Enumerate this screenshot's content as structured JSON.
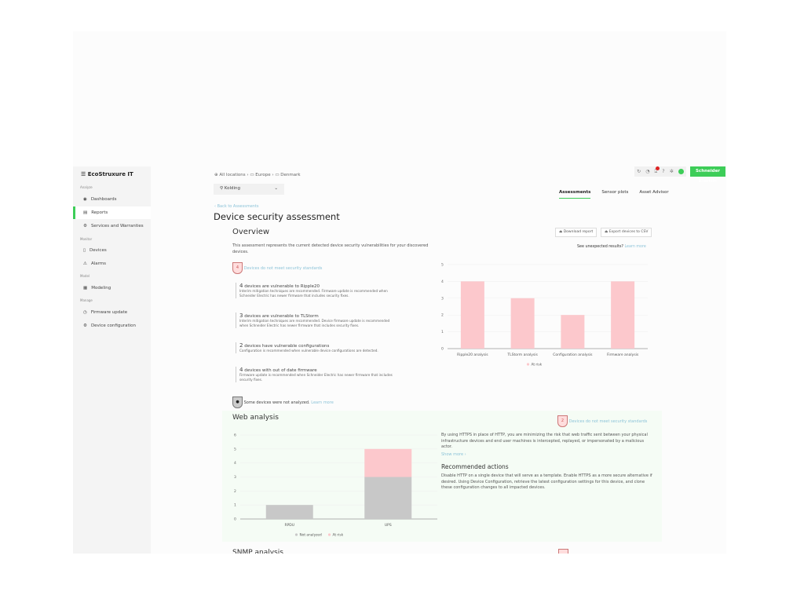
{
  "sidebar": {
    "logo": "EcoStruxure IT",
    "sections": [
      {
        "label": "Analyze",
        "items": [
          {
            "label": "Dashboards",
            "icon": "eye-icon"
          },
          {
            "label": "Reports",
            "icon": "report-icon",
            "active": true
          },
          {
            "label": "Services and Warranties",
            "icon": "services-icon"
          }
        ]
      },
      {
        "label": "Monitor",
        "items": [
          {
            "label": "Devices",
            "icon": "device-icon"
          },
          {
            "label": "Alarms",
            "icon": "alarm-icon"
          }
        ]
      },
      {
        "label": "Model",
        "items": [
          {
            "label": "Modeling",
            "icon": "modeling-icon"
          }
        ]
      },
      {
        "label": "Manage",
        "items": [
          {
            "label": "Firmware update",
            "icon": "firmware-icon"
          },
          {
            "label": "Device configuration",
            "icon": "config-icon"
          }
        ]
      }
    ]
  },
  "breadcrumb": [
    "All locations",
    "Europe",
    "Denmark"
  ],
  "location_select": "Kolding",
  "tabs": [
    "Assessments",
    "Sensor plots",
    "Asset Advisor"
  ],
  "brand": "Schneider Electric",
  "back_link": "Back to Assessments",
  "page_title": "Device security assessment",
  "overview": {
    "title": "Overview",
    "download": "Download report",
    "export": "Export devices to CSV",
    "unexpected": "See unexpected results?",
    "learn_more": "Learn more",
    "description": "This assessment represents the current detected device security vulnerabilities for your discovered devices.",
    "badge_count": "4",
    "badge_label": "Devices do not meet security standards",
    "vulns": [
      {
        "count": "4",
        "title": "devices are vulnerable to Ripple20",
        "desc": "Interim mitigation techniques are recommended. Firmware update is recommended when Schneider Electric has newer firmware that includes security fixes."
      },
      {
        "count": "3",
        "title": "devices are vulnerable to TLStorm",
        "desc": "Interim mitigation techniques are recommended. Device firmware update is recommended when Schneider Electric has newer firmware that includes security fixes."
      },
      {
        "count": "2",
        "title": "devices have vulnerable configurations",
        "desc": "Configuration is recommended when vulnerable device configurations are detected."
      },
      {
        "count": "4",
        "title": "devices with out of date firmware",
        "desc": "Firmware update is recommended when Schneider Electric has newer firmware that includes security fixes."
      }
    ],
    "not_analyzed": "Some devices were not analyzed.",
    "not_analyzed_link": "Learn more"
  },
  "web": {
    "title": "Web analysis",
    "badge_count": "2",
    "badge_label": "Devices do not meet security standards",
    "text": "By using HTTPS in place of HTTP, you are minimizing the risk that web traffic sent between your physical infrastructure devices and end user machines is intercepted, replayed, or impersonated by a malicious actor.",
    "show_more": "Show more",
    "actions_title": "Recommended actions",
    "actions": "Disable HTTP on a single device that will serve as a template. Enable HTTPS as a more secure alternative if desired. Using Device Configuration, retrieve the latest configuration settings for this device, and clone these configuration changes to all impacted devices."
  },
  "snmp_title": "SNMP analysis",
  "chart_data": [
    {
      "type": "bar",
      "categories": [
        "Ripple20 analysis",
        "TLStorm analysis",
        "Configuration analysis",
        "Firmware analysis"
      ],
      "series": [
        {
          "name": "At risk",
          "values": [
            4,
            3,
            2,
            4
          ],
          "color": "#fcc8cc"
        }
      ],
      "ylim": [
        0,
        5
      ],
      "yticks": [
        0,
        1,
        2,
        3,
        4,
        5
      ],
      "grid": true,
      "legend": "bottom"
    },
    {
      "type": "bar",
      "stacked": true,
      "categories": [
        "RPDU",
        "UPS"
      ],
      "series": [
        {
          "name": "Not analyzed",
          "values": [
            1,
            3
          ],
          "color": "#c8c8c8"
        },
        {
          "name": "At risk",
          "values": [
            0,
            2
          ],
          "color": "#fcc8cc"
        }
      ],
      "ylim": [
        0,
        6
      ],
      "yticks": [
        0,
        1,
        2,
        3,
        4,
        5,
        6
      ],
      "grid": true,
      "legend": "bottom"
    }
  ]
}
